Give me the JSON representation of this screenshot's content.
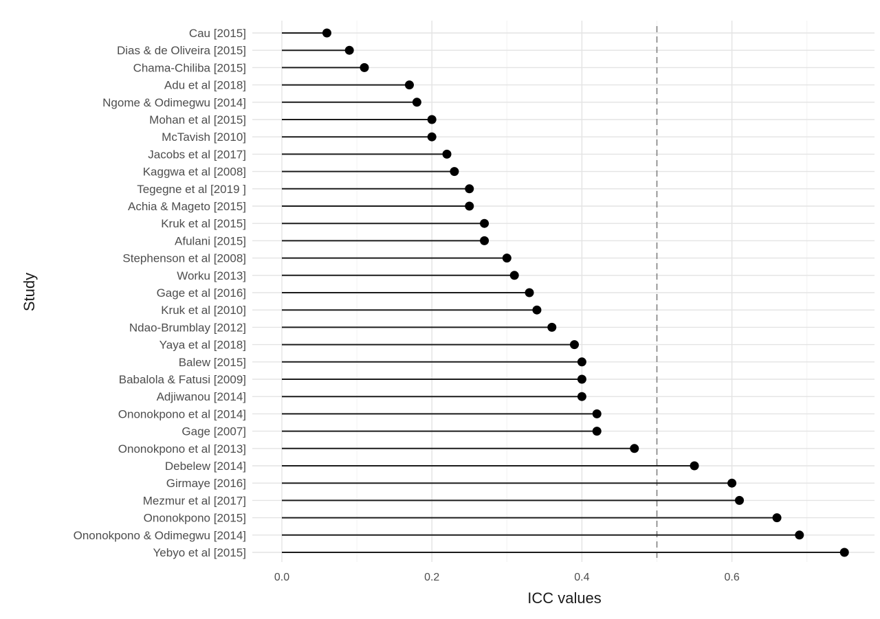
{
  "chart_data": {
    "type": "lollipop",
    "xlabel": "ICC values",
    "ylabel": "Study",
    "xlim": [
      -0.02,
      0.77
    ],
    "xticks": [
      0.0,
      0.2,
      0.4,
      0.6
    ],
    "xtick_labels": [
      "0.0",
      "0.2",
      "0.4",
      "0.6"
    ],
    "reference_line": 0.5,
    "grid": true,
    "points": [
      {
        "study": "Cau [2015]",
        "value": 0.06
      },
      {
        "study": "Dias & de Oliveira [2015]",
        "value": 0.09
      },
      {
        "study": "Chama-Chiliba [2015]",
        "value": 0.11
      },
      {
        "study": "Adu et al [2018]",
        "value": 0.17
      },
      {
        "study": "Ngome & Odimegwu [2014]",
        "value": 0.18
      },
      {
        "study": "Mohan et al [2015]",
        "value": 0.2
      },
      {
        "study": "McTavish [2010]",
        "value": 0.2
      },
      {
        "study": "Jacobs et al [2017]",
        "value": 0.22
      },
      {
        "study": "Kaggwa et al [2008]",
        "value": 0.23
      },
      {
        "study": "Tegegne et al [2019 ]",
        "value": 0.25
      },
      {
        "study": "Achia & Mageto [2015]",
        "value": 0.25
      },
      {
        "study": "Kruk et al [2015]",
        "value": 0.27
      },
      {
        "study": "Afulani [2015]",
        "value": 0.27
      },
      {
        "study": "Stephenson et al [2008]",
        "value": 0.3
      },
      {
        "study": "Worku [2013]",
        "value": 0.31
      },
      {
        "study": "Gage et al [2016]",
        "value": 0.33
      },
      {
        "study": "Kruk et al [2010]",
        "value": 0.34
      },
      {
        "study": "Ndao-Brumblay [2012]",
        "value": 0.36
      },
      {
        "study": "Yaya et al [2018]",
        "value": 0.39
      },
      {
        "study": "Balew [2015]",
        "value": 0.4
      },
      {
        "study": "Babalola & Fatusi [2009]",
        "value": 0.4
      },
      {
        "study": "Adjiwanou [2014]",
        "value": 0.4
      },
      {
        "study": "Ononokpono et al [2014]",
        "value": 0.42
      },
      {
        "study": "Gage [2007]",
        "value": 0.42
      },
      {
        "study": "Ononokpono et al [2013]",
        "value": 0.47
      },
      {
        "study": "Debelew [2014]",
        "value": 0.55
      },
      {
        "study": "Girmaye [2016]",
        "value": 0.6
      },
      {
        "study": "Mezmur et al [2017]",
        "value": 0.61
      },
      {
        "study": "Ononokpono [2015]",
        "value": 0.66
      },
      {
        "study": "Ononokpono & Odimegwu [2014]",
        "value": 0.69
      },
      {
        "study": "Yebyo et al [2015]",
        "value": 0.75
      }
    ]
  },
  "colors": {
    "stem": "#1a1a1a",
    "point": "#000000",
    "grid_major": "#e3e3e3",
    "grid_minor": "#f2f2f2",
    "reference_line": "#808080",
    "label": "#4d4d4d",
    "title": "#1a1a1a"
  }
}
